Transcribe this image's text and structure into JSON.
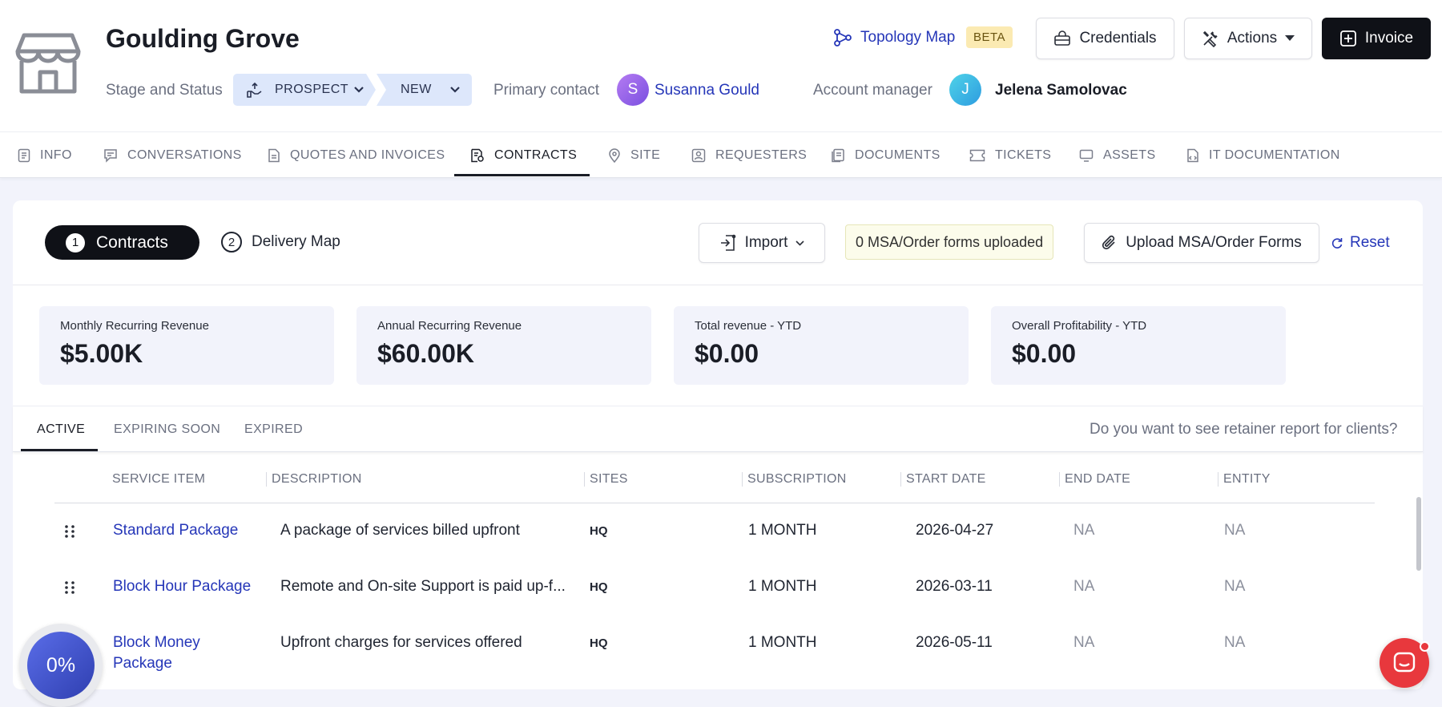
{
  "account": {
    "name": "Goulding Grove",
    "stage_label": "Stage and Status",
    "stage": "PROSPECT",
    "status": "NEW",
    "primary_contact_label": "Primary contact",
    "primary_contact_initial": "S",
    "primary_contact_name": "Susanna Gould",
    "account_manager_label": "Account manager",
    "account_manager_initial": "J",
    "account_manager_name": "Jelena Samolovac"
  },
  "header_actions": {
    "topology_label": "Topology Map",
    "beta_badge": "BETA",
    "credentials_label": "Credentials",
    "actions_label": "Actions",
    "invoice_label": "Invoice"
  },
  "tabs": [
    {
      "label": "INFO",
      "icon": "info-doc-icon"
    },
    {
      "label": "CONVERSATIONS",
      "icon": "chat-icon"
    },
    {
      "label": "QUOTES AND INVOICES",
      "icon": "quote-icon"
    },
    {
      "label": "CONTRACTS",
      "icon": "contract-icon",
      "active": true
    },
    {
      "label": "SITE",
      "icon": "location-pin-icon"
    },
    {
      "label": "REQUESTERS",
      "icon": "id-card-icon"
    },
    {
      "label": "DOCUMENTS",
      "icon": "documents-icon"
    },
    {
      "label": "TICKETS",
      "icon": "ticket-icon"
    },
    {
      "label": "ASSETS",
      "icon": "monitor-icon"
    },
    {
      "label": "IT DOCUMENTATION",
      "icon": "it-doc-icon"
    }
  ],
  "steps": {
    "step1_num": "1",
    "step1_label": "Contracts",
    "step2_num": "2",
    "step2_label": "Delivery Map"
  },
  "toolbar": {
    "import_label": "Import",
    "msa_status": "0 MSA/Order forms uploaded",
    "upload_label": "Upload MSA/Order Forms",
    "reset_label": "Reset"
  },
  "metrics": [
    {
      "label": "Monthly Recurring Revenue",
      "value": "$5.00K"
    },
    {
      "label": "Annual Recurring Revenue",
      "value": "$60.00K"
    },
    {
      "label": "Total revenue - YTD",
      "value": "$0.00"
    },
    {
      "label": "Overall Profitability - YTD",
      "value": "$0.00"
    }
  ],
  "subtabs": {
    "active": "ACTIVE",
    "expiring": "EXPIRING SOON",
    "expired": "EXPIRED",
    "retainer_link": "Do you want to see retainer report for clients?"
  },
  "table": {
    "columns": [
      "SERVICE ITEM",
      "DESCRIPTION",
      "SITES",
      "SUBSCRIPTION",
      "START DATE",
      "END DATE",
      "ENTITY"
    ],
    "rows": [
      {
        "service_line1": "Standard Package",
        "service_line2": "",
        "description": "A package of services billed upfront",
        "site": "HQ",
        "subscription": "1 MONTH",
        "start": "2026-04-27",
        "end": "NA",
        "entity": "NA"
      },
      {
        "service_line1": "Block Hour Package",
        "service_line2": "",
        "description": "Remote and On-site Support is paid up-f...",
        "site": "HQ",
        "subscription": "1 MONTH",
        "start": "2026-03-11",
        "end": "NA",
        "entity": "NA"
      },
      {
        "service_line1": "Block Money",
        "service_line2": "Package",
        "description": "Upfront charges for services offered",
        "site": "HQ",
        "subscription": "1 MONTH",
        "start": "2026-05-11",
        "end": "NA",
        "entity": "NA"
      }
    ]
  },
  "progress_widget": {
    "value": "0%"
  },
  "colors": {
    "accent": "#2536b8",
    "primary_dark": "#0f1117",
    "stage_bg": "#dde7fb",
    "beta_bg": "#fbeab2",
    "chat_red": "#e8383d"
  }
}
